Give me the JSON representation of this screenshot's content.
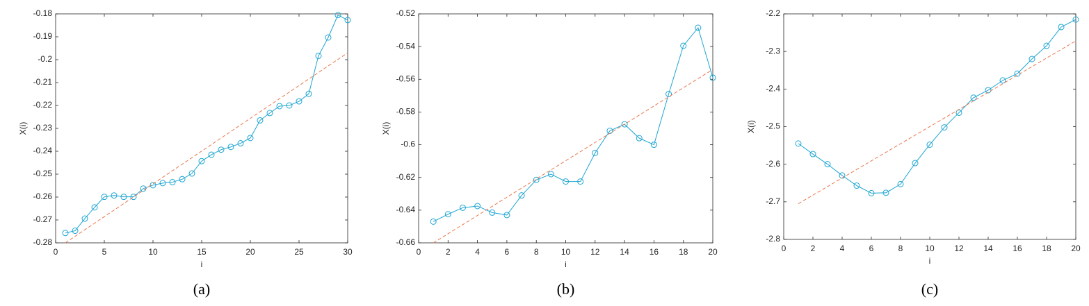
{
  "chart_data": [
    {
      "type": "line",
      "xlabel": "i",
      "ylabel": "X(i)",
      "caption": "(a)",
      "x": [
        1,
        2,
        3,
        4,
        5,
        6,
        7,
        8,
        9,
        10,
        11,
        12,
        13,
        14,
        15,
        16,
        17,
        18,
        19,
        20,
        21,
        22,
        23,
        24,
        25,
        26,
        27,
        28,
        29,
        30
      ],
      "series": [
        {
          "color": "#1ea5d2",
          "marker": "circle",
          "values": [
            -0.2757,
            -0.2747,
            -0.2694,
            -0.2645,
            -0.2599,
            -0.2593,
            -0.2599,
            -0.2599,
            -0.2563,
            -0.2548,
            -0.2539,
            -0.2535,
            -0.2522,
            -0.2497,
            -0.2443,
            -0.2415,
            -0.2393,
            -0.2381,
            -0.2365,
            -0.2342,
            -0.2265,
            -0.2233,
            -0.2203,
            -0.22,
            -0.2182,
            -0.2149,
            -0.1983,
            -0.1903,
            -0.1805,
            -0.1827
          ]
        },
        {
          "color": "#e8784e",
          "dashed": true,
          "x": [
            1,
            30
          ],
          "values": [
            -0.28,
            -0.197
          ]
        }
      ],
      "xlim": [
        0,
        30
      ],
      "xticks": [
        0,
        5,
        10,
        15,
        20,
        25,
        30
      ],
      "ylim": [
        -0.28,
        -0.18
      ],
      "yticks": [
        -0.28,
        -0.27,
        -0.26,
        -0.25,
        -0.24,
        -0.23,
        -0.22,
        -0.21,
        -0.2,
        -0.19,
        -0.18
      ]
    },
    {
      "type": "line",
      "xlabel": "i",
      "ylabel": "X(i)",
      "caption": "(b)",
      "x": [
        1,
        2,
        3,
        4,
        5,
        6,
        7,
        8,
        9,
        10,
        11,
        12,
        13,
        14,
        15,
        16,
        17,
        18,
        19,
        20
      ],
      "series": [
        {
          "color": "#1ea5d2",
          "marker": "circle",
          "values": [
            -0.647,
            -0.6425,
            -0.6385,
            -0.6375,
            -0.6415,
            -0.643,
            -0.631,
            -0.6215,
            -0.618,
            -0.6225,
            -0.6225,
            -0.605,
            -0.5915,
            -0.5875,
            -0.596,
            -0.6,
            -0.569,
            -0.5395,
            -0.5285,
            -0.559
          ]
        },
        {
          "color": "#e8784e",
          "dashed": true,
          "x": [
            1,
            20
          ],
          "values": [
            -0.66,
            -0.554
          ]
        }
      ],
      "xlim": [
        0,
        20
      ],
      "xticks": [
        0,
        2,
        4,
        6,
        8,
        10,
        12,
        14,
        16,
        18,
        20
      ],
      "ylim": [
        -0.66,
        -0.52
      ],
      "yticks": [
        -0.66,
        -0.64,
        -0.62,
        -0.6,
        -0.58,
        -0.56,
        -0.54,
        -0.52
      ]
    },
    {
      "type": "line",
      "xlabel": "i",
      "ylabel": "X(i)",
      "caption": "(c)",
      "x": [
        1,
        2,
        3,
        4,
        5,
        6,
        7,
        8,
        9,
        10,
        11,
        12,
        13,
        14,
        15,
        16,
        17,
        18,
        19,
        20
      ],
      "series": [
        {
          "color": "#1ea5d2",
          "marker": "circle",
          "values": [
            -2.545,
            -2.573,
            -2.6,
            -2.63,
            -2.657,
            -2.677,
            -2.676,
            -2.653,
            -2.597,
            -2.548,
            -2.502,
            -2.463,
            -2.423,
            -2.403,
            -2.377,
            -2.359,
            -2.32,
            -2.285,
            -2.235,
            -2.215
          ]
        },
        {
          "color": "#e8784e",
          "dashed": true,
          "x": [
            1,
            20
          ],
          "values": [
            -2.705,
            -2.272
          ]
        }
      ],
      "xlim": [
        0,
        20
      ],
      "xticks": [
        0,
        2,
        4,
        6,
        8,
        10,
        12,
        14,
        16,
        18,
        20
      ],
      "ylim": [
        -2.8,
        -2.2
      ],
      "yticks": [
        -2.8,
        -2.7,
        -2.6,
        -2.5,
        -2.4,
        -2.3,
        -2.2
      ]
    }
  ]
}
